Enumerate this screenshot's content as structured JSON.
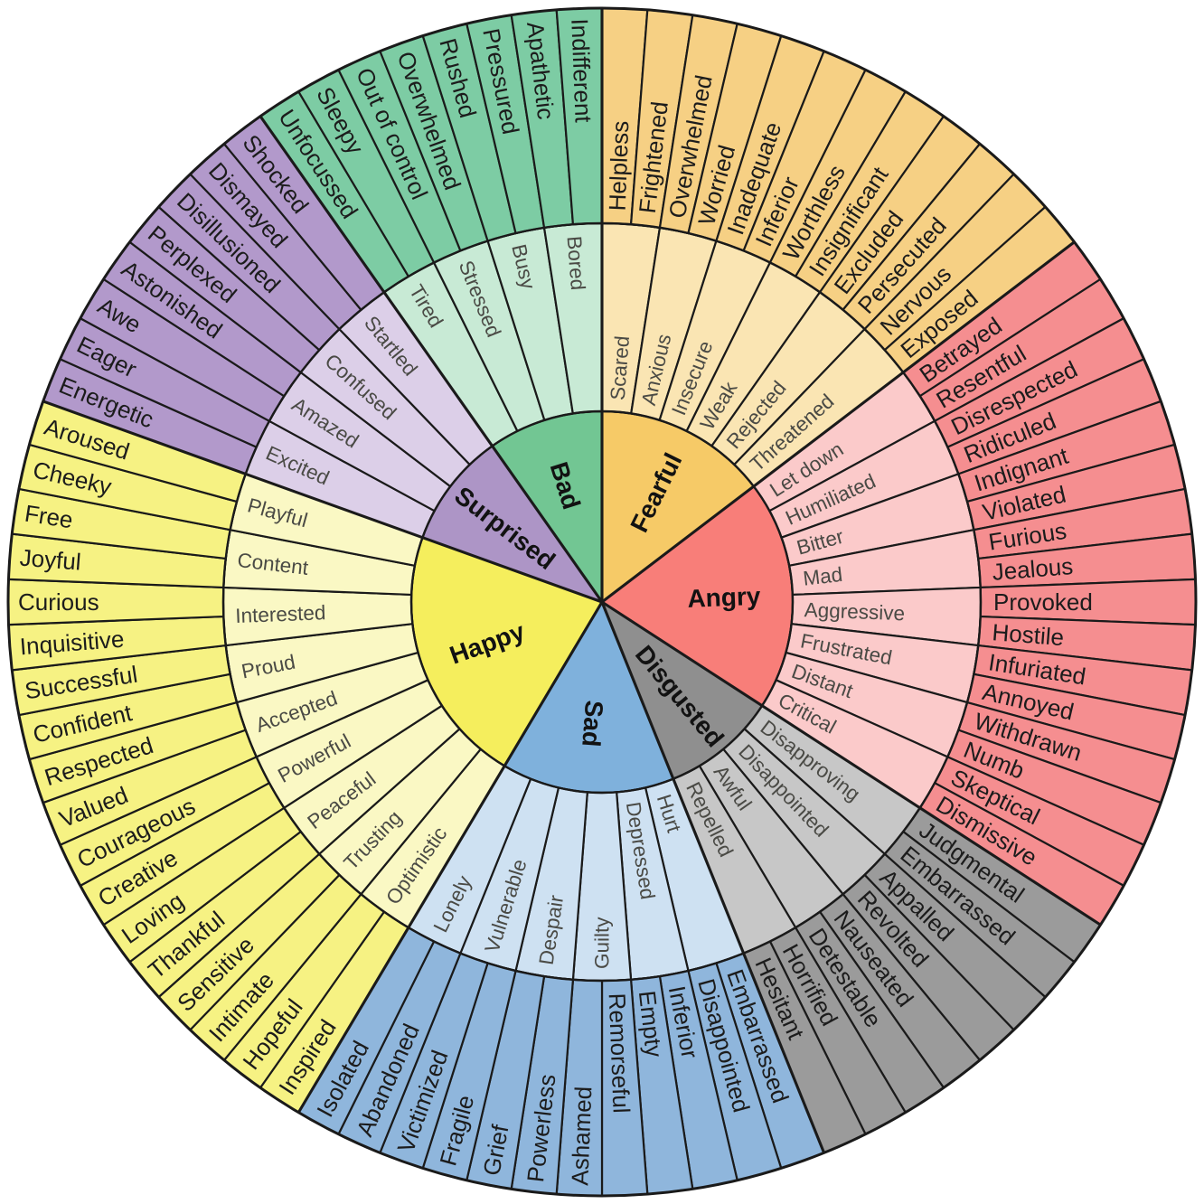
{
  "page": {
    "background": "#FFFFFF"
  },
  "chart_data": {
    "type": "sunburst",
    "border_color": "#1A1A1A",
    "rings": [
      "core",
      "middle",
      "outer"
    ],
    "start_angle_deg": 0,
    "direction": "clockwise",
    "sections": [
      {
        "label": "Fearful",
        "colors": {
          "core": "#F6CA67",
          "middle": "#FAE5B3",
          "outer": "#F6D084"
        },
        "middle": [
          "Scared",
          "Anxious",
          "Insecure",
          "Weak",
          "Rejected",
          "Threatened"
        ],
        "outer": [
          "Helpless",
          "Frightened",
          "Overwhelmed",
          "Worried",
          "Inadequate",
          "Inferior",
          "Worthless",
          "Insignificant",
          "Excluded",
          "Persecuted",
          "Nervous",
          "Exposed"
        ]
      },
      {
        "label": "Angry",
        "colors": {
          "core": "#F87E79",
          "middle": "#FBCACA",
          "outer": "#F58E90"
        },
        "middle": [
          "Let down",
          "Humiliated",
          "Bitter",
          "Mad",
          "Aggressive",
          "Frustrated",
          "Distant",
          "Critical"
        ],
        "outer": [
          "Betrayed",
          "Resentful",
          "Disrespected",
          "Ridiculed",
          "Indignant",
          "Violated",
          "Furious",
          "Jealous",
          "Provoked",
          "Hostile",
          "Infuriated",
          "Annoyed",
          "Withdrawn",
          "Numb",
          "Skeptical",
          "Dismissive"
        ]
      },
      {
        "label": "Disgusted",
        "colors": {
          "core": "#8F8F8F",
          "middle": "#C7C7C7",
          "outer": "#9B9B9B"
        },
        "middle": [
          "Disapproving",
          "Disappointed",
          "Awful",
          "Repelled"
        ],
        "outer": [
          "Judgmental",
          "Embarrassed",
          "Appalled",
          "Revolted",
          "Nauseated",
          "Detestable",
          "Horrified",
          "Hesitant"
        ]
      },
      {
        "label": "Sad",
        "flip_center_label": true,
        "colors": {
          "core": "#7FB1DC",
          "middle": "#CEE1F2",
          "outer": "#8FB6DC"
        },
        "middle": [
          "Hurt",
          "Depressed",
          "Guilty",
          "Despair",
          "Vulnerable",
          "Lonely"
        ],
        "outer": [
          "Embarrassed",
          "Disappointed",
          "Inferior",
          "Empty",
          "Remorseful",
          "Ashamed",
          "Powerless",
          "Grief",
          "Fragile",
          "Victimized",
          "Abandoned",
          "Isolated"
        ]
      },
      {
        "label": "Happy",
        "colors": {
          "core": "#F5EE5D",
          "middle": "#FAF8C4",
          "outer": "#F6F283"
        },
        "middle": [
          "Optimistic",
          "Trusting",
          "Peaceful",
          "Powerful",
          "Accepted",
          "Proud",
          "Interested",
          "Content",
          "Playful"
        ],
        "outer": [
          "Inspired",
          "Hopeful",
          "Intimate",
          "Sensitive",
          "Thankful",
          "Loving",
          "Creative",
          "Courageous",
          "Valued",
          "Respected",
          "Confident",
          "Successful",
          "Inquisitive",
          "Curious",
          "Joyful",
          "Free",
          "Cheeky",
          "Aroused"
        ]
      },
      {
        "label": "Surprised",
        "colors": {
          "core": "#AD95C6",
          "middle": "#DCCFE8",
          "outer": "#B299CB"
        },
        "middle": [
          "Excited",
          "Amazed",
          "Confused",
          "Startled"
        ],
        "outer": [
          "Energetic",
          "Eager",
          "Awe",
          "Astonished",
          "Perplexed",
          "Disillusioned",
          "Dismayed",
          "Shocked"
        ]
      },
      {
        "label": "Bad",
        "colors": {
          "core": "#72C693",
          "middle": "#C8EAD5",
          "outer": "#7DCCA4"
        },
        "middle": [
          "Tired",
          "Stressed",
          "Busy",
          "Bored"
        ],
        "outer": [
          "Unfocussed",
          "Sleepy",
          "Out of control",
          "Overwhelmed",
          "Rushed",
          "Pressured",
          "Apathetic",
          "Indifferent"
        ]
      }
    ]
  }
}
